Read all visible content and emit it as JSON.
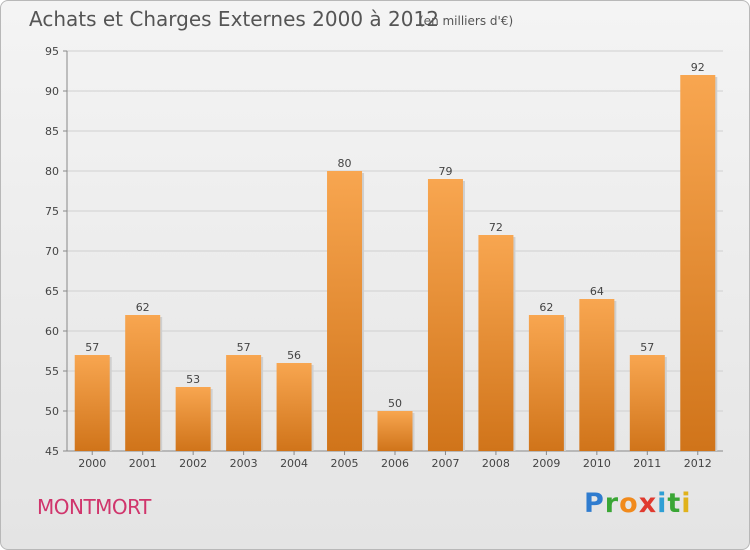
{
  "header": {
    "title": "Achats et Charges Externes 2000 à 2012",
    "subtitle": "(en milliers d'€)"
  },
  "footer": {
    "commune": "MONTMORT",
    "logo": {
      "letters": [
        "P",
        "r",
        "o",
        "x",
        "i",
        "t",
        "i"
      ],
      "colors": [
        "#2f7ccf",
        "#3aa635",
        "#f18a1c",
        "#e03a2f",
        "#2f9fd5",
        "#3aa635",
        "#e0b21b"
      ]
    }
  },
  "colors": {
    "bar_light": "#f8a650",
    "bar_dark": "#d0741a",
    "axis_text": "#444444",
    "grid": "#d0d0d0"
  },
  "chart_data": {
    "type": "bar",
    "title": "Achats et Charges Externes 2000 à 2012",
    "subtitle": "(en milliers d'€)",
    "categories": [
      "2000",
      "2001",
      "2002",
      "2003",
      "2004",
      "2005",
      "2006",
      "2007",
      "2008",
      "2009",
      "2010",
      "2011",
      "2012"
    ],
    "values": [
      57,
      62,
      53,
      57,
      56,
      80,
      50,
      79,
      72,
      62,
      64,
      57,
      92
    ],
    "ylim": [
      45,
      95
    ],
    "yticks": [
      45,
      50,
      55,
      60,
      65,
      70,
      75,
      80,
      85,
      90,
      95
    ],
    "xlabel": "",
    "ylabel": "",
    "grid": true,
    "data_labels": true
  }
}
